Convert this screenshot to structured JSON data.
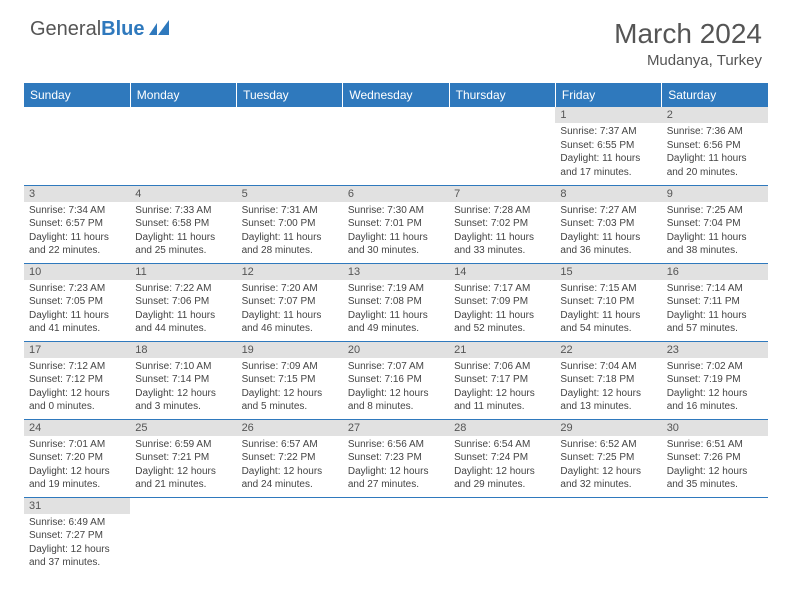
{
  "logo": {
    "text1": "General",
    "text2": "Blue"
  },
  "title": "March 2024",
  "location": "Mudanya, Turkey",
  "colors": {
    "header_bg": "#2f79bd",
    "header_fg": "#ffffff",
    "daynum_bg": "#e1e1e1",
    "row_divider": "#2f79bd",
    "text": "#444444"
  },
  "day_headers": [
    "Sunday",
    "Monday",
    "Tuesday",
    "Wednesday",
    "Thursday",
    "Friday",
    "Saturday"
  ],
  "weeks": [
    [
      null,
      null,
      null,
      null,
      null,
      {
        "n": "1",
        "sr": "Sunrise: 7:37 AM",
        "ss": "Sunset: 6:55 PM",
        "d1": "Daylight: 11 hours",
        "d2": "and 17 minutes."
      },
      {
        "n": "2",
        "sr": "Sunrise: 7:36 AM",
        "ss": "Sunset: 6:56 PM",
        "d1": "Daylight: 11 hours",
        "d2": "and 20 minutes."
      }
    ],
    [
      {
        "n": "3",
        "sr": "Sunrise: 7:34 AM",
        "ss": "Sunset: 6:57 PM",
        "d1": "Daylight: 11 hours",
        "d2": "and 22 minutes."
      },
      {
        "n": "4",
        "sr": "Sunrise: 7:33 AM",
        "ss": "Sunset: 6:58 PM",
        "d1": "Daylight: 11 hours",
        "d2": "and 25 minutes."
      },
      {
        "n": "5",
        "sr": "Sunrise: 7:31 AM",
        "ss": "Sunset: 7:00 PM",
        "d1": "Daylight: 11 hours",
        "d2": "and 28 minutes."
      },
      {
        "n": "6",
        "sr": "Sunrise: 7:30 AM",
        "ss": "Sunset: 7:01 PM",
        "d1": "Daylight: 11 hours",
        "d2": "and 30 minutes."
      },
      {
        "n": "7",
        "sr": "Sunrise: 7:28 AM",
        "ss": "Sunset: 7:02 PM",
        "d1": "Daylight: 11 hours",
        "d2": "and 33 minutes."
      },
      {
        "n": "8",
        "sr": "Sunrise: 7:27 AM",
        "ss": "Sunset: 7:03 PM",
        "d1": "Daylight: 11 hours",
        "d2": "and 36 minutes."
      },
      {
        "n": "9",
        "sr": "Sunrise: 7:25 AM",
        "ss": "Sunset: 7:04 PM",
        "d1": "Daylight: 11 hours",
        "d2": "and 38 minutes."
      }
    ],
    [
      {
        "n": "10",
        "sr": "Sunrise: 7:23 AM",
        "ss": "Sunset: 7:05 PM",
        "d1": "Daylight: 11 hours",
        "d2": "and 41 minutes."
      },
      {
        "n": "11",
        "sr": "Sunrise: 7:22 AM",
        "ss": "Sunset: 7:06 PM",
        "d1": "Daylight: 11 hours",
        "d2": "and 44 minutes."
      },
      {
        "n": "12",
        "sr": "Sunrise: 7:20 AM",
        "ss": "Sunset: 7:07 PM",
        "d1": "Daylight: 11 hours",
        "d2": "and 46 minutes."
      },
      {
        "n": "13",
        "sr": "Sunrise: 7:19 AM",
        "ss": "Sunset: 7:08 PM",
        "d1": "Daylight: 11 hours",
        "d2": "and 49 minutes."
      },
      {
        "n": "14",
        "sr": "Sunrise: 7:17 AM",
        "ss": "Sunset: 7:09 PM",
        "d1": "Daylight: 11 hours",
        "d2": "and 52 minutes."
      },
      {
        "n": "15",
        "sr": "Sunrise: 7:15 AM",
        "ss": "Sunset: 7:10 PM",
        "d1": "Daylight: 11 hours",
        "d2": "and 54 minutes."
      },
      {
        "n": "16",
        "sr": "Sunrise: 7:14 AM",
        "ss": "Sunset: 7:11 PM",
        "d1": "Daylight: 11 hours",
        "d2": "and 57 minutes."
      }
    ],
    [
      {
        "n": "17",
        "sr": "Sunrise: 7:12 AM",
        "ss": "Sunset: 7:12 PM",
        "d1": "Daylight: 12 hours",
        "d2": "and 0 minutes."
      },
      {
        "n": "18",
        "sr": "Sunrise: 7:10 AM",
        "ss": "Sunset: 7:14 PM",
        "d1": "Daylight: 12 hours",
        "d2": "and 3 minutes."
      },
      {
        "n": "19",
        "sr": "Sunrise: 7:09 AM",
        "ss": "Sunset: 7:15 PM",
        "d1": "Daylight: 12 hours",
        "d2": "and 5 minutes."
      },
      {
        "n": "20",
        "sr": "Sunrise: 7:07 AM",
        "ss": "Sunset: 7:16 PM",
        "d1": "Daylight: 12 hours",
        "d2": "and 8 minutes."
      },
      {
        "n": "21",
        "sr": "Sunrise: 7:06 AM",
        "ss": "Sunset: 7:17 PM",
        "d1": "Daylight: 12 hours",
        "d2": "and 11 minutes."
      },
      {
        "n": "22",
        "sr": "Sunrise: 7:04 AM",
        "ss": "Sunset: 7:18 PM",
        "d1": "Daylight: 12 hours",
        "d2": "and 13 minutes."
      },
      {
        "n": "23",
        "sr": "Sunrise: 7:02 AM",
        "ss": "Sunset: 7:19 PM",
        "d1": "Daylight: 12 hours",
        "d2": "and 16 minutes."
      }
    ],
    [
      {
        "n": "24",
        "sr": "Sunrise: 7:01 AM",
        "ss": "Sunset: 7:20 PM",
        "d1": "Daylight: 12 hours",
        "d2": "and 19 minutes."
      },
      {
        "n": "25",
        "sr": "Sunrise: 6:59 AM",
        "ss": "Sunset: 7:21 PM",
        "d1": "Daylight: 12 hours",
        "d2": "and 21 minutes."
      },
      {
        "n": "26",
        "sr": "Sunrise: 6:57 AM",
        "ss": "Sunset: 7:22 PM",
        "d1": "Daylight: 12 hours",
        "d2": "and 24 minutes."
      },
      {
        "n": "27",
        "sr": "Sunrise: 6:56 AM",
        "ss": "Sunset: 7:23 PM",
        "d1": "Daylight: 12 hours",
        "d2": "and 27 minutes."
      },
      {
        "n": "28",
        "sr": "Sunrise: 6:54 AM",
        "ss": "Sunset: 7:24 PM",
        "d1": "Daylight: 12 hours",
        "d2": "and 29 minutes."
      },
      {
        "n": "29",
        "sr": "Sunrise: 6:52 AM",
        "ss": "Sunset: 7:25 PM",
        "d1": "Daylight: 12 hours",
        "d2": "and 32 minutes."
      },
      {
        "n": "30",
        "sr": "Sunrise: 6:51 AM",
        "ss": "Sunset: 7:26 PM",
        "d1": "Daylight: 12 hours",
        "d2": "and 35 minutes."
      }
    ],
    [
      {
        "n": "31",
        "sr": "Sunrise: 6:49 AM",
        "ss": "Sunset: 7:27 PM",
        "d1": "Daylight: 12 hours",
        "d2": "and 37 minutes."
      },
      null,
      null,
      null,
      null,
      null,
      null
    ]
  ]
}
